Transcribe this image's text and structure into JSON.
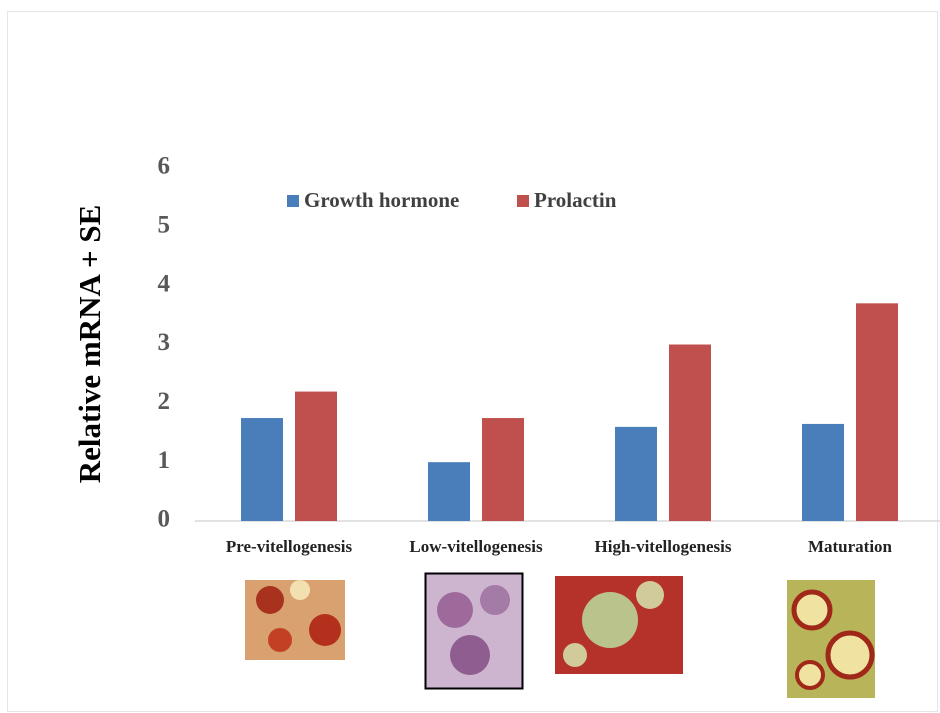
{
  "chart_data": {
    "type": "bar",
    "y_label": "Relative mRNA + SE",
    "categories": [
      "Pre-vitellogenesis",
      "Low-vitellogenesis",
      "High-vitellogenesis",
      "Maturation"
    ],
    "series": [
      {
        "name": "Growth hormone",
        "color": "#4a7ebb",
        "values": [
          1.75,
          1.0,
          1.6,
          1.65
        ]
      },
      {
        "name": "Prolactin",
        "color": "#c0504d",
        "values": [
          2.2,
          1.75,
          3.0,
          3.7
        ]
      }
    ],
    "ylim": [
      0,
      6
    ],
    "yticks": [
      0,
      1,
      2,
      3,
      4,
      5,
      6
    ],
    "grid": false,
    "legend": "top"
  }
}
